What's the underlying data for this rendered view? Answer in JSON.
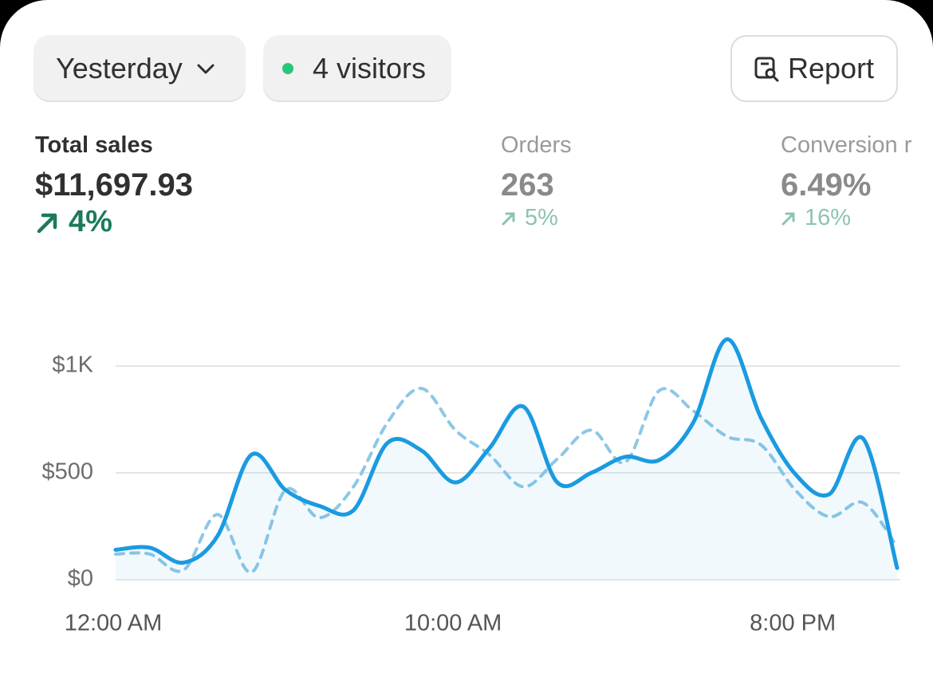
{
  "header": {
    "period_button": "Yesterday",
    "visitors_button": "4 visitors",
    "report_button": "Report"
  },
  "metrics": [
    {
      "label": "Total sales",
      "value": "$11,697.93",
      "change": "4%"
    },
    {
      "label": "Orders",
      "value": "263",
      "change": "5%"
    },
    {
      "label": "Conversion r",
      "value": "6.49%",
      "change": "16%"
    }
  ],
  "chart_data": {
    "type": "line",
    "categories": [
      "12:00 AM",
      null,
      null,
      null,
      null,
      null,
      null,
      null,
      null,
      null,
      "10:00 AM",
      null,
      null,
      null,
      null,
      null,
      null,
      null,
      null,
      null,
      "8:00 PM",
      null,
      null,
      null
    ],
    "series": [
      {
        "color": "#1a9be0",
        "dashed": false,
        "fill": true,
        "values": [
          140,
          150,
          80,
          205,
          585,
          420,
          345,
          325,
          640,
          605,
          455,
          615,
          810,
          455,
          500,
          575,
          560,
          735,
          1125,
          755,
          495,
          400,
          660,
          55
        ]
      },
      {
        "color": "#8cc8e6",
        "dashed": true,
        "fill": false,
        "values": [
          120,
          120,
          45,
          305,
          35,
          420,
          290,
          435,
          735,
          895,
          700,
          585,
          435,
          565,
          700,
          550,
          885,
          790,
          670,
          630,
          420,
          295,
          360,
          155
        ]
      }
    ],
    "ylim": [
      0,
      1250
    ],
    "yticks": [
      {
        "value": 0,
        "label": "$0"
      },
      {
        "value": 500,
        "label": "$500"
      },
      {
        "value": 1000,
        "label": "$1K"
      }
    ],
    "grid": true
  }
}
